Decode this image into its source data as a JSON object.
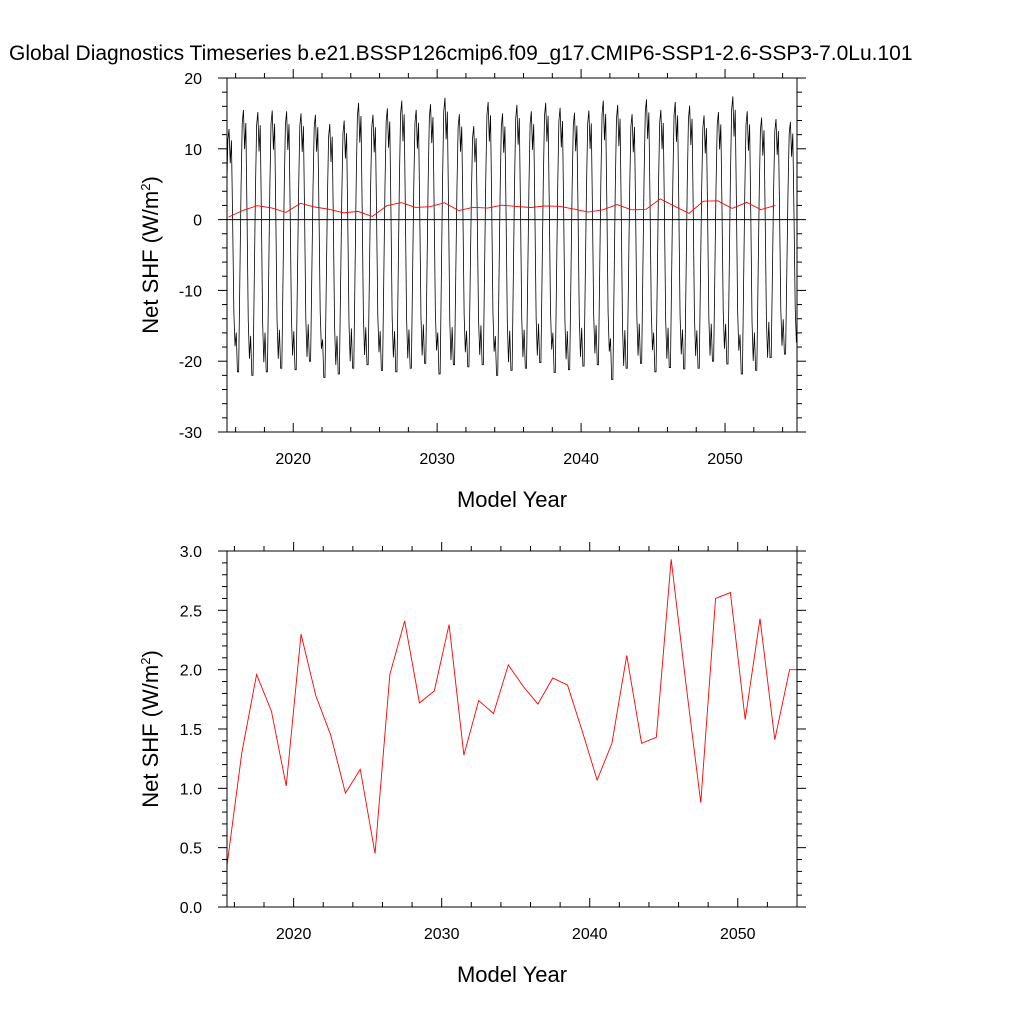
{
  "title": "Global Diagnostics Timeseries b.e21.BSSP126cmip6.f09_g17.CMIP6-SSP1-2.6-SSP3-7.0Lu.101",
  "colors": {
    "monthly": "#000000",
    "annual": "#ff0000",
    "frame": "#000000",
    "zero_line": "#000000"
  },
  "chart_data": [
    {
      "type": "line",
      "panel": "top",
      "xlabel": "Model Year",
      "ylabel": "Net SHF (W/m²)",
      "ylabel_main": "Net SHF (W/m",
      "ylabel_sup": "2",
      "ylabel_end": ")",
      "xlim": [
        2015.4,
        2055
      ],
      "ylim": [
        -30,
        20
      ],
      "x_ticks": [
        2020,
        2030,
        2040,
        2050
      ],
      "x_tick_labels": [
        "2020",
        "2030",
        "2040",
        "2050"
      ],
      "y_ticks": [
        -30,
        -20,
        -10,
        0,
        10,
        20
      ],
      "y_tick_labels": [
        "-30",
        "-20",
        "-10",
        "0",
        "10",
        "20"
      ],
      "reference_line": 0,
      "series": [
        {
          "kind": "monthly",
          "color": "#000000",
          "description_x": "one year per cycle, Jan 2015 to Dec 2054",
          "cycle_min": [
            -19.5,
            -21.5,
            -22.0,
            -21.5,
            -21.0,
            -21.2,
            -20.0,
            -22.3,
            -21.8,
            -21.0,
            -20.5,
            -21.3,
            -21.5,
            -21.0,
            -20.3,
            -21.8,
            -20.5,
            -20.8,
            -20.5,
            -22.0,
            -21.3,
            -21.0,
            -20.2,
            -21.6,
            -21.2,
            -20.7,
            -20.5,
            -22.6,
            -21.0,
            -20.3,
            -21.5,
            -20.9,
            -21.1,
            -21.0,
            -20.0,
            -20.4,
            -21.8,
            -21.3,
            -19.5,
            -19.0
          ],
          "cycle_max": [
            12.8,
            15.5,
            15.2,
            15.4,
            15.3,
            15.0,
            14.8,
            13.5,
            14.0,
            16.5,
            14.8,
            15.7,
            16.8,
            15.5,
            16.3,
            17.2,
            14.9,
            13.2,
            16.6,
            15.0,
            16.2,
            15.3,
            16.5,
            15.8,
            15.1,
            15.4,
            16.8,
            16.2,
            14.9,
            17.0,
            15.5,
            16.6,
            16.1,
            14.7,
            15.2,
            17.4,
            15.3,
            14.4,
            14.2,
            13.8
          ]
        },
        {
          "kind": "annual",
          "color": "#ff0000",
          "x": [
            2015.5,
            2016.5,
            2017.5,
            2018.5,
            2019.5,
            2020.5,
            2021.5,
            2022.5,
            2023.5,
            2024.5,
            2025.5,
            2026.5,
            2027.5,
            2028.5,
            2029.5,
            2030.5,
            2031.5,
            2032.5,
            2033.5,
            2034.5,
            2035.5,
            2036.5,
            2037.5,
            2038.5,
            2039.5,
            2040.5,
            2041.5,
            2042.5,
            2043.5,
            2044.5,
            2045.5,
            2046.5,
            2047.5,
            2048.5,
            2049.5,
            2050.5,
            2051.5,
            2052.5,
            2053.5
          ],
          "values": [
            0.35,
            1.3,
            1.96,
            1.65,
            1.02,
            2.3,
            1.78,
            1.45,
            0.96,
            1.16,
            0.45,
            1.96,
            2.41,
            1.72,
            1.82,
            2.38,
            1.28,
            1.74,
            1.63,
            2.04,
            1.86,
            1.71,
            1.93,
            1.87,
            1.48,
            1.07,
            1.38,
            2.12,
            1.38,
            1.43,
            2.93,
            1.88,
            0.88,
            2.6,
            2.65,
            1.58,
            2.43,
            1.41,
            2.0
          ]
        }
      ]
    },
    {
      "type": "line",
      "panel": "bottom",
      "xlabel": "Model Year",
      "ylabel_main": "Net SHF (W/m",
      "ylabel_sup": "2",
      "ylabel_end": ")",
      "xlim": [
        2015.5,
        2054
      ],
      "ylim": [
        0.0,
        3.0
      ],
      "x_ticks": [
        2020,
        2030,
        2040,
        2050
      ],
      "x_tick_labels": [
        "2020",
        "2030",
        "2040",
        "2050"
      ],
      "y_ticks": [
        0.0,
        0.5,
        1.0,
        1.5,
        2.0,
        2.5,
        3.0
      ],
      "y_tick_labels": [
        "0.0",
        "0.5",
        "1.0",
        "1.5",
        "2.0",
        "2.5",
        "3.0"
      ],
      "series": [
        {
          "kind": "annual",
          "color": "#ff0000",
          "x": [
            2015.5,
            2016.5,
            2017.5,
            2018.5,
            2019.5,
            2020.5,
            2021.5,
            2022.5,
            2023.5,
            2024.5,
            2025.5,
            2026.5,
            2027.5,
            2028.5,
            2029.5,
            2030.5,
            2031.5,
            2032.5,
            2033.5,
            2034.5,
            2035.5,
            2036.5,
            2037.5,
            2038.5,
            2039.5,
            2040.5,
            2041.5,
            2042.5,
            2043.5,
            2044.5,
            2045.5,
            2046.5,
            2047.5,
            2048.5,
            2049.5,
            2050.5,
            2051.5,
            2052.5,
            2053.5,
            2054.0
          ],
          "values": [
            0.35,
            1.3,
            1.96,
            1.65,
            1.02,
            2.3,
            1.78,
            1.45,
            0.96,
            1.16,
            0.45,
            1.96,
            2.41,
            1.72,
            1.82,
            2.38,
            1.28,
            1.74,
            1.63,
            2.04,
            1.86,
            1.71,
            1.93,
            1.87,
            1.48,
            1.07,
            1.38,
            2.12,
            1.38,
            1.43,
            2.93,
            1.88,
            0.88,
            2.6,
            2.65,
            1.58,
            2.43,
            1.41,
            2.0,
            2.0
          ]
        }
      ]
    }
  ]
}
